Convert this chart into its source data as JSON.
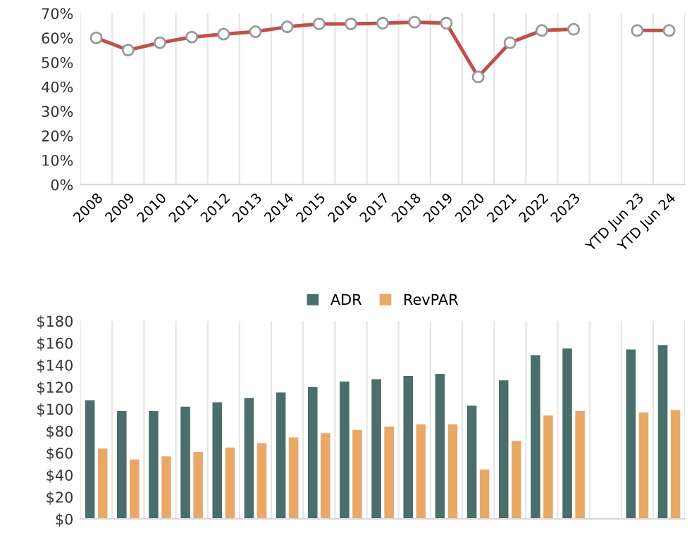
{
  "chart_data": [
    {
      "type": "line",
      "categories": [
        "2008",
        "2009",
        "2010",
        "2011",
        "2012",
        "2013",
        "2014",
        "2015",
        "2016",
        "2017",
        "2018",
        "2019",
        "2020",
        "2021",
        "2022",
        "2023",
        null,
        "YTD Jun 23",
        "YTD Jun 24"
      ],
      "series": [
        {
          "color": "#c0504d",
          "values": [
            60,
            55,
            58,
            60.3,
            61.5,
            62.5,
            64.5,
            65.7,
            65.7,
            66,
            66.4,
            66,
            44,
            58,
            63,
            63.5,
            null,
            63,
            63
          ]
        }
      ],
      "ylim": [
        0,
        70
      ],
      "yticks": [
        {
          "value": 0,
          "label": "0%"
        },
        {
          "value": 10,
          "label": "10%"
        },
        {
          "value": 20,
          "label": "20%"
        },
        {
          "value": 30,
          "label": "30%"
        },
        {
          "value": 40,
          "label": "40%"
        },
        {
          "value": 50,
          "label": "50%"
        },
        {
          "value": 60,
          "label": "60%"
        },
        {
          "value": 70,
          "label": "70%"
        }
      ],
      "grid": "x",
      "marker": "circle",
      "line_style": "solid"
    },
    {
      "type": "bar",
      "categories": [
        null,
        null,
        null,
        null,
        null,
        null,
        null,
        null,
        null,
        null,
        null,
        null,
        null,
        null,
        null,
        null,
        null,
        null,
        null
      ],
      "series": [
        {
          "name": "ADR",
          "color": "#4a6e6a",
          "values": [
            108,
            98,
            98,
            102,
            106,
            110,
            115,
            120,
            125,
            127,
            130,
            132,
            103,
            126,
            149,
            155,
            null,
            154,
            158
          ]
        },
        {
          "name": "RevPAR",
          "color": "#e8a868",
          "values": [
            64,
            54,
            57,
            61,
            65,
            69,
            74,
            78,
            81,
            84,
            86,
            86,
            45,
            71,
            94,
            98,
            null,
            97,
            99
          ]
        }
      ],
      "ylim": [
        0,
        180
      ],
      "yticks": [
        {
          "value": 0,
          "label": "$0"
        },
        {
          "value": 20,
          "label": "$20"
        },
        {
          "value": 40,
          "label": "$40"
        },
        {
          "value": 60,
          "label": "$60"
        },
        {
          "value": 80,
          "label": "$80"
        },
        {
          "value": 100,
          "label": "$100"
        },
        {
          "value": 120,
          "label": "$120"
        },
        {
          "value": 140,
          "label": "$140"
        },
        {
          "value": 160,
          "label": "$160"
        },
        {
          "value": 180,
          "label": "$180"
        }
      ],
      "grid": "x",
      "legend": "top",
      "tick_labels": "y"
    }
  ]
}
